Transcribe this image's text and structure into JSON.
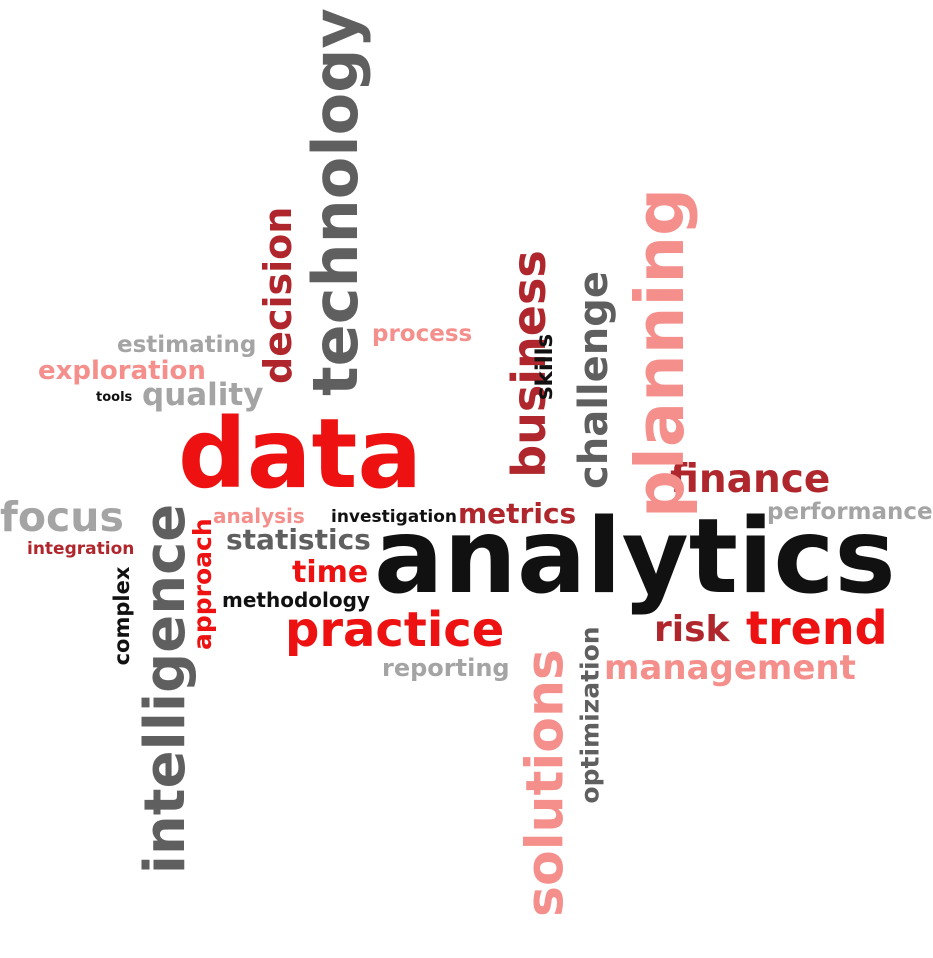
{
  "colors": {
    "red": "#ee1111",
    "dark_red": "#b0262d",
    "pink": "#f48f8c",
    "dark_gray": "#5f5f5f",
    "light_gray": "#a4a4a4",
    "black": "#111111"
  },
  "words": {
    "technology": "technology",
    "decision": "decision",
    "estimating": "estimating",
    "exploration": "exploration",
    "tools": "tools",
    "quality": "quality",
    "process": "process",
    "business": "business",
    "skills": "skills",
    "challenge": "challenge",
    "planning": "planning",
    "data": "data",
    "finance": "finance",
    "focus": "focus",
    "integration": "integration",
    "intelligence": "intelligence",
    "approach": "approach",
    "analysis": "analysis",
    "investigation": "investigation",
    "metrics": "metrics",
    "performance": "performance",
    "statistics": "statistics",
    "complex": "complex",
    "time": "time",
    "analytics": "analytics",
    "methodology": "methodology",
    "practice": "practice",
    "risk": "risk",
    "trend": "trend",
    "solutions": "solutions",
    "optimization": "optimization",
    "reporting": "reporting",
    "management": "management"
  }
}
